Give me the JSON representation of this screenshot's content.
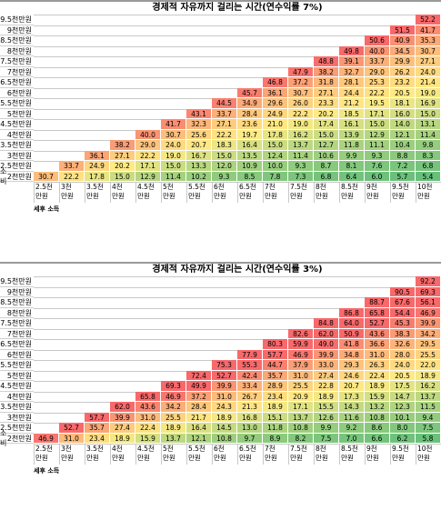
{
  "side_label": "소비",
  "footer_label": "세후 소득",
  "row_labels": [
    "9.5천만원",
    "9천만원",
    "8.5천만원",
    "8천만원",
    "7.5천만원",
    "7천만원",
    "6.5천만원",
    "6천만원",
    "5.5천만원",
    "5천만원",
    "4.5천만원",
    "4천만원",
    "3.5천만원",
    "3천만원",
    "2.5천만원",
    "2천만원"
  ],
  "col_labels": [
    "2.5천 만원",
    "3천 만원",
    "3.5천 만원",
    "4천 만원",
    "4.5천 만원",
    "5천 만원",
    "5.5천 만원",
    "6천 만원",
    "6.5천 만원",
    "7천 만원",
    "7.5천 만원",
    "8천 만원",
    "8.5천 만원",
    "9천 만원",
    "9.5천 만원",
    "10천 만원"
  ],
  "tables": [
    {
      "title": "경제적 자유까지 걸리는 시간(연수익률 7%)",
      "rows": [
        [
          "",
          "",
          "",
          "",
          "",
          "",
          "",
          "",
          "",
          "",
          "",
          "",
          "",
          "",
          "",
          "52.2"
        ],
        [
          "",
          "",
          "",
          "",
          "",
          "",
          "",
          "",
          "",
          "",
          "",
          "",
          "",
          "",
          "51.5",
          "41.7"
        ],
        [
          "",
          "",
          "",
          "",
          "",
          "",
          "",
          "",
          "",
          "",
          "",
          "",
          "",
          "50.6",
          "40.9",
          "35.3"
        ],
        [
          "",
          "",
          "",
          "",
          "",
          "",
          "",
          "",
          "",
          "",
          "",
          "",
          "49.8",
          "40.0",
          "34.5",
          "30.7"
        ],
        [
          "",
          "",
          "",
          "",
          "",
          "",
          "",
          "",
          "",
          "",
          "",
          "48.8",
          "39.1",
          "33.7",
          "29.9",
          "27.1"
        ],
        [
          "",
          "",
          "",
          "",
          "",
          "",
          "",
          "",
          "",
          "",
          "47.9",
          "38.2",
          "32.7",
          "29.0",
          "26.2",
          "24.0"
        ],
        [
          "",
          "",
          "",
          "",
          "",
          "",
          "",
          "",
          "",
          "46.8",
          "37.2",
          "31.8",
          "28.1",
          "25.3",
          "23.2",
          "21.4"
        ],
        [
          "",
          "",
          "",
          "",
          "",
          "",
          "",
          "",
          "45.7",
          "36.1",
          "30.7",
          "27.1",
          "24.4",
          "22.2",
          "20.5",
          "19.0"
        ],
        [
          "",
          "",
          "",
          "",
          "",
          "",
          "",
          "44.5",
          "34.9",
          "29.6",
          "26.0",
          "23.3",
          "21.2",
          "19.5",
          "18.1",
          "16.9"
        ],
        [
          "",
          "",
          "",
          "",
          "",
          "",
          "43.1",
          "33.7",
          "28.4",
          "24.9",
          "22.2",
          "20.2",
          "18.5",
          "17.1",
          "16.0",
          "15.0"
        ],
        [
          "",
          "",
          "",
          "",
          "",
          "41.7",
          "32.3",
          "27.1",
          "23.6",
          "21.0",
          "19.0",
          "17.4",
          "16.1",
          "15.0",
          "14.0",
          "13.1"
        ],
        [
          "",
          "",
          "",
          "",
          "40.0",
          "30.7",
          "25.6",
          "22.2",
          "19.7",
          "17.8",
          "16.2",
          "15.0",
          "13.9",
          "12.9",
          "12.1",
          "11.4"
        ],
        [
          "",
          "",
          "",
          "38.2",
          "29.0",
          "24.0",
          "20.7",
          "18.3",
          "16.4",
          "15.0",
          "13.7",
          "12.7",
          "11.8",
          "11.1",
          "10.4",
          "9.8"
        ],
        [
          "",
          "",
          "36.1",
          "27.1",
          "22.2",
          "19.0",
          "16.7",
          "15.0",
          "13.5",
          "12.4",
          "11.4",
          "10.6",
          "9.9",
          "9.3",
          "8.8",
          "8.3"
        ],
        [
          "",
          "33.7",
          "24.9",
          "20.2",
          "17.1",
          "15.0",
          "13.3",
          "12.0",
          "10.9",
          "10.0",
          "9.3",
          "8.7",
          "8.1",
          "7.6",
          "7.2",
          "6.8"
        ],
        [
          "30.7",
          "22.2",
          "17.8",
          "15.0",
          "12.9",
          "11.4",
          "10.2",
          "9.3",
          "8.5",
          "7.8",
          "7.3",
          "6.8",
          "6.4",
          "6.0",
          "5.7",
          "5.4"
        ]
      ]
    },
    {
      "title": "경제적 자유까지 걸리는 시간(연수익률 3%)",
      "rows": [
        [
          "",
          "",
          "",
          "",
          "",
          "",
          "",
          "",
          "",
          "",
          "",
          "",
          "",
          "",
          "",
          "92.2"
        ],
        [
          "",
          "",
          "",
          "",
          "",
          "",
          "",
          "",
          "",
          "",
          "",
          "",
          "",
          "",
          "90.5",
          "69.3"
        ],
        [
          "",
          "",
          "",
          "",
          "",
          "",
          "",
          "",
          "",
          "",
          "",
          "",
          "",
          "88.7",
          "67.6",
          "56.1"
        ],
        [
          "",
          "",
          "",
          "",
          "",
          "",
          "",
          "",
          "",
          "",
          "",
          "",
          "86.8",
          "65.8",
          "54.4",
          "46.9"
        ],
        [
          "",
          "",
          "",
          "",
          "",
          "",
          "",
          "",
          "",
          "",
          "",
          "84.8",
          "64.0",
          "52.7",
          "45.3",
          "39.9"
        ],
        [
          "",
          "",
          "",
          "",
          "",
          "",
          "",
          "",
          "",
          "",
          "82.6",
          "62.0",
          "50.9",
          "43.6",
          "38.3",
          "34.2"
        ],
        [
          "",
          "",
          "",
          "",
          "",
          "",
          "",
          "",
          "",
          "80.3",
          "59.9",
          "49.0",
          "41.8",
          "36.6",
          "32.6",
          "29.5"
        ],
        [
          "",
          "",
          "",
          "",
          "",
          "",
          "",
          "",
          "77.9",
          "57.7",
          "46.9",
          "39.9",
          "34.8",
          "31.0",
          "28.0",
          "25.5"
        ],
        [
          "",
          "",
          "",
          "",
          "",
          "",
          "",
          "75.3",
          "55.3",
          "44.7",
          "37.9",
          "33.0",
          "29.3",
          "26.3",
          "24.0",
          "22.0"
        ],
        [
          "",
          "",
          "",
          "",
          "",
          "",
          "72.4",
          "52.7",
          "42.4",
          "35.7",
          "31.0",
          "27.4",
          "24.6",
          "22.4",
          "20.5",
          "18.9"
        ],
        [
          "",
          "",
          "",
          "",
          "",
          "69.3",
          "49.9",
          "39.9",
          "33.4",
          "28.9",
          "25.5",
          "22.8",
          "20.7",
          "18.9",
          "17.5",
          "16.2"
        ],
        [
          "",
          "",
          "",
          "",
          "65.8",
          "46.9",
          "37.2",
          "31.0",
          "26.7",
          "23.4",
          "20.9",
          "18.9",
          "17.3",
          "15.9",
          "14.7",
          "13.7"
        ],
        [
          "",
          "",
          "",
          "62.0",
          "43.6",
          "34.2",
          "28.4",
          "24.3",
          "21.3",
          "18.9",
          "17.1",
          "15.5",
          "14.3",
          "13.2",
          "12.3",
          "11.5"
        ],
        [
          "",
          "",
          "57.7",
          "39.9",
          "31.0",
          "25.5",
          "21.7",
          "18.9",
          "16.8",
          "15.1",
          "13.7",
          "12.6",
          "11.6",
          "10.8",
          "10.1",
          "9.4"
        ],
        [
          "",
          "52.7",
          "35.7",
          "27.4",
          "22.4",
          "18.9",
          "16.4",
          "14.5",
          "13.0",
          "11.8",
          "10.8",
          "9.9",
          "9.2",
          "8.6",
          "8.0",
          "7.5"
        ],
        [
          "46.9",
          "31.0",
          "23.4",
          "18.9",
          "15.9",
          "13.7",
          "12.1",
          "10.8",
          "9.7",
          "8.9",
          "8.2",
          "7.5",
          "7.0",
          "6.6",
          "6.2",
          "5.8"
        ]
      ]
    }
  ]
}
